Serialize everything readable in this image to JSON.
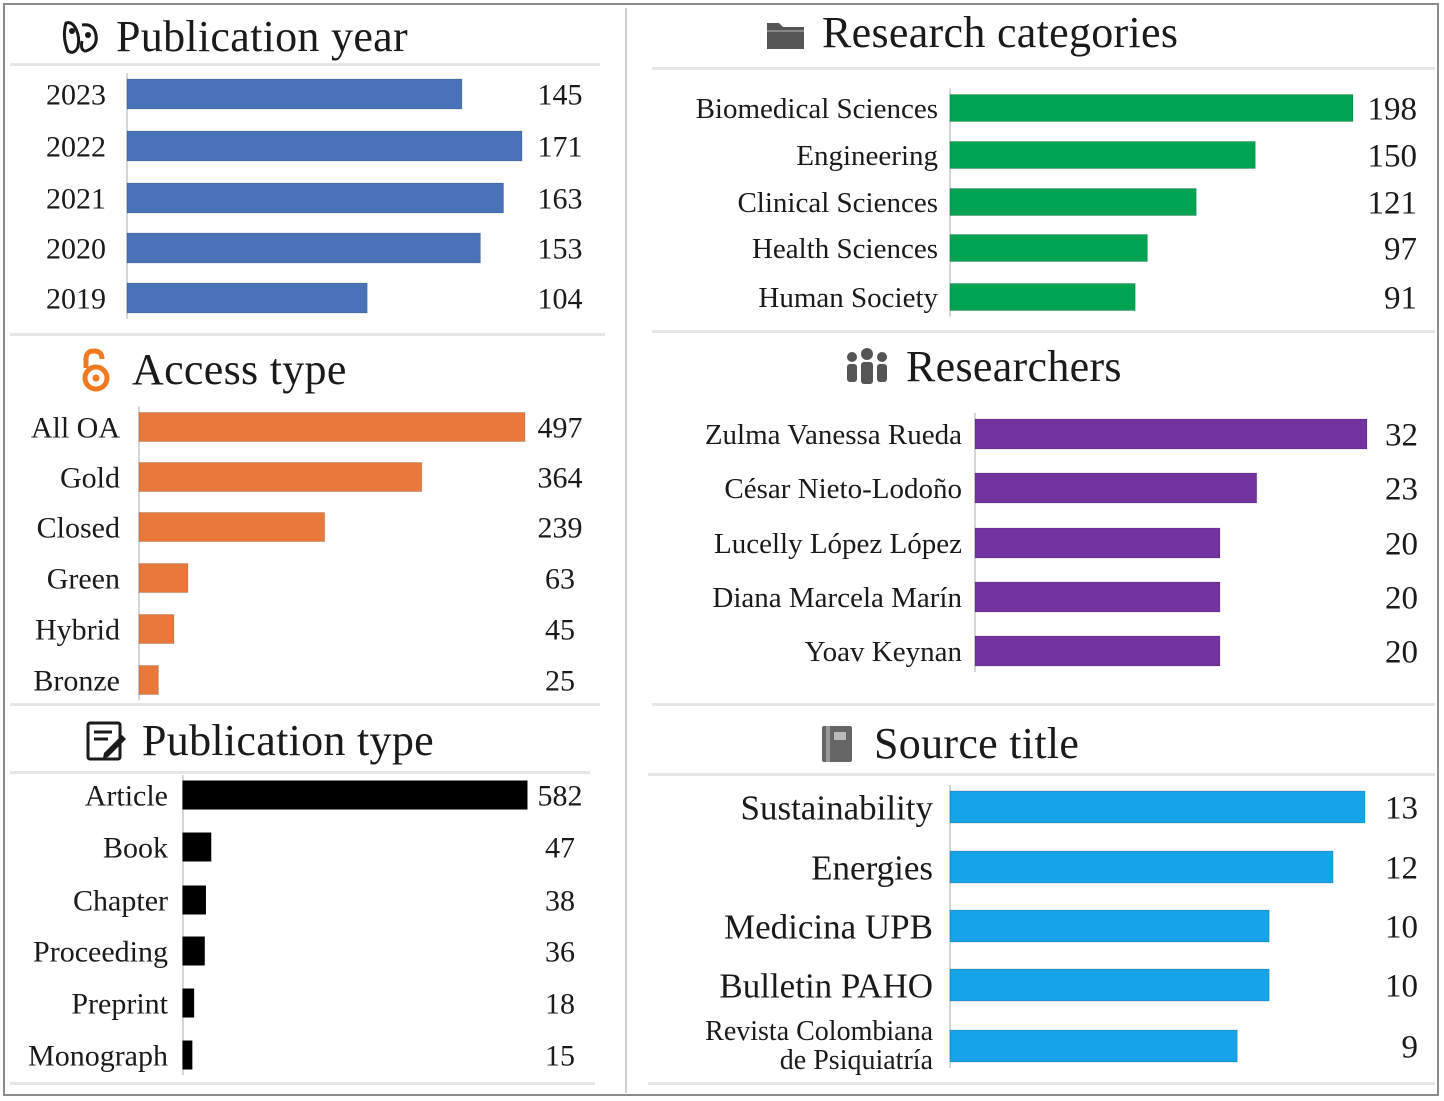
{
  "panels": {
    "publication_year": {
      "title": "Publication year",
      "icon": "calendar-hands-icon"
    },
    "research_categories": {
      "title": "Research categories",
      "icon": "folder-icon"
    },
    "access_type": {
      "title": "Access type",
      "icon": "open-access-lock-icon"
    },
    "researchers": {
      "title": "Researchers",
      "icon": "people-group-icon"
    },
    "publication_type": {
      "title": "Publication type",
      "icon": "document-edit-icon"
    },
    "source_title": {
      "title": "Source title",
      "icon": "book-icon"
    }
  },
  "chart_data": [
    {
      "id": "publication_year",
      "type": "bar",
      "orientation": "horizontal",
      "categories": [
        "2023",
        "2022",
        "2021",
        "2020",
        "2019"
      ],
      "values": [
        145,
        171,
        163,
        153,
        104
      ],
      "color": "#4a72b8",
      "title": "Publication year"
    },
    {
      "id": "research_categories",
      "type": "bar",
      "orientation": "horizontal",
      "categories": [
        "Biomedical Sciences",
        "Engineering",
        "Clinical Sciences",
        "Health Sciences",
        "Human Society"
      ],
      "values": [
        198,
        150,
        121,
        97,
        91
      ],
      "color": "#00a352",
      "title": "Research categories"
    },
    {
      "id": "access_type",
      "type": "bar",
      "orientation": "horizontal",
      "categories": [
        "All OA",
        "Gold",
        "Closed",
        "Green",
        "Hybrid",
        "Bronze"
      ],
      "values": [
        497,
        364,
        239,
        63,
        45,
        25
      ],
      "color": "#e8793a",
      "title": "Access type"
    },
    {
      "id": "researchers",
      "type": "bar",
      "orientation": "horizontal",
      "categories": [
        "Zulma Vanessa Rueda",
        "César Nieto-Lodoño",
        "Lucelly López López",
        "Diana Marcela Marín",
        "Yoav Keynan"
      ],
      "values": [
        32,
        23,
        20,
        20,
        20
      ],
      "color": "#7232a0",
      "title": "Researchers"
    },
    {
      "id": "publication_type",
      "type": "bar",
      "orientation": "horizontal",
      "categories": [
        "Article",
        "Book",
        "Chapter",
        "Proceeding",
        "Preprint",
        "Monograph"
      ],
      "values": [
        582,
        47,
        38,
        36,
        18,
        15
      ],
      "color": "#000000",
      "title": "Publication type"
    },
    {
      "id": "source_title",
      "type": "bar",
      "orientation": "horizontal",
      "categories": [
        "Sustainability",
        "Energies",
        "Medicina UPB",
        "Bulletin PAHO",
        "Revista Colombiana de Psiquiatría"
      ],
      "values": [
        13,
        12,
        10,
        10,
        9
      ],
      "color": "#16a3e8",
      "title": "Source title"
    }
  ]
}
